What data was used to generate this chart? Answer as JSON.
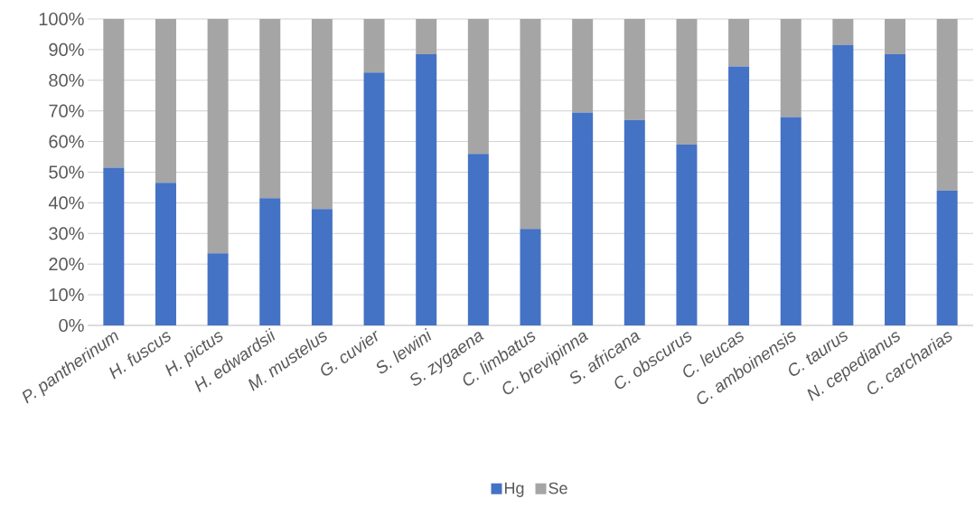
{
  "chart_data": {
    "type": "bar",
    "stacked": true,
    "grid": "y",
    "legend": "bottom",
    "categories": [
      "P. pantherinum",
      "H. fuscus",
      "H. pictus",
      "H. edwardsii",
      "M. mustelus",
      "G. cuvier",
      "S. lewini",
      "S. zygaena",
      "C. limbatus",
      "C. brevipinna",
      "S. africana",
      "C. obscurus",
      "C. leucas",
      "C. amboinensis",
      "C. taurus",
      "N. cepedianus",
      "C. carcharias"
    ],
    "series": [
      {
        "name": "Hg",
        "color": "#4472c4",
        "values": [
          51.5,
          46.5,
          23.5,
          41.5,
          38,
          82.5,
          88.5,
          56,
          31.5,
          69.5,
          67,
          59,
          84.5,
          68,
          91.5,
          88.5,
          44
        ]
      },
      {
        "name": "Se",
        "color": "#a5a5a5",
        "values": [
          48.5,
          53.5,
          76.5,
          58.5,
          62,
          17.5,
          11.5,
          44,
          68.5,
          30.5,
          33,
          41,
          15.5,
          32,
          8.5,
          11.5,
          56
        ]
      }
    ],
    "ylim": [
      0,
      100
    ],
    "yticks": [
      {
        "value": 0,
        "label": "0%"
      },
      {
        "value": 10,
        "label": "10%"
      },
      {
        "value": 20,
        "label": "20%"
      },
      {
        "value": 30,
        "label": "30%"
      },
      {
        "value": 40,
        "label": "40%"
      },
      {
        "value": 50,
        "label": "50%"
      },
      {
        "value": 60,
        "label": "60%"
      },
      {
        "value": 70,
        "label": "70%"
      },
      {
        "value": 80,
        "label": "80%"
      },
      {
        "value": 90,
        "label": "90%"
      },
      {
        "value": 100,
        "label": "100%"
      }
    ]
  }
}
